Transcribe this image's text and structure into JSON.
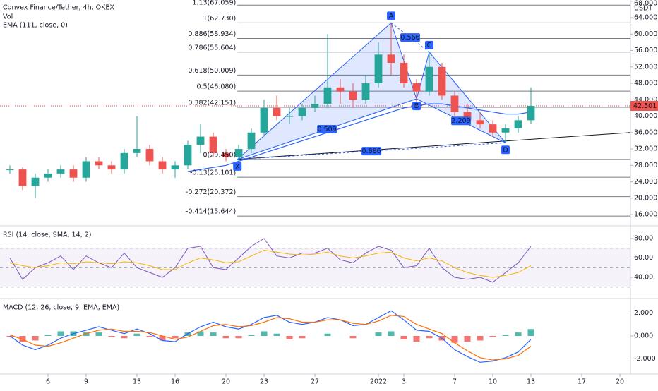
{
  "chart_data": [
    {
      "type": "candlestick",
      "title": "Convex Finance/Tether, 4h, OKEX",
      "volume_label": "Vol",
      "currency": "USDT",
      "x": [
        3,
        4,
        5,
        6,
        7,
        8,
        9,
        10,
        11,
        12,
        13,
        14,
        15,
        16,
        17,
        18,
        19,
        20,
        21,
        22,
        23,
        24,
        25,
        26,
        27,
        28,
        29,
        30,
        31,
        32,
        33,
        34,
        35,
        36,
        37,
        38,
        39,
        40,
        41,
        42,
        43,
        44
      ],
      "open": [
        27,
        27,
        23,
        25,
        26,
        27,
        25,
        29,
        28,
        27,
        31,
        32,
        29,
        27,
        28,
        33,
        35,
        31,
        30,
        32,
        36,
        42,
        40,
        40,
        42,
        43,
        47,
        46,
        44,
        48,
        55,
        53,
        48,
        46,
        52,
        45,
        41,
        39,
        38,
        36,
        37,
        39
      ],
      "high": [
        28,
        27.5,
        26,
        27,
        28,
        28,
        30,
        30,
        29,
        32,
        40,
        33,
        30,
        29,
        34,
        38,
        36,
        32,
        33,
        37,
        44,
        45,
        42,
        43,
        45,
        60,
        49,
        48,
        50,
        58,
        62.73,
        55,
        49,
        55.6,
        53,
        46,
        43,
        41,
        39,
        38,
        40,
        47
      ],
      "low": [
        26,
        22,
        20,
        24,
        25,
        24,
        24,
        27,
        26,
        26,
        30,
        28,
        26,
        25,
        27,
        31,
        30,
        29,
        29,
        31,
        35,
        39,
        38,
        39,
        41,
        42,
        43,
        42,
        43,
        47,
        50,
        47,
        43.5,
        45,
        44,
        40,
        38,
        37,
        35,
        33.5,
        36,
        38
      ],
      "close": [
        27,
        23,
        25,
        26,
        27,
        25,
        29,
        28,
        27,
        31,
        32,
        29,
        27,
        28,
        33,
        35,
        31,
        30,
        32,
        36,
        42,
        40,
        40,
        42,
        43,
        47,
        46,
        44,
        48,
        55,
        53,
        48,
        46,
        52,
        45,
        41,
        39,
        38,
        36,
        37,
        39,
        42.501
      ],
      "up_color": "#26a69a",
      "down_color": "#ef5350",
      "series": [
        {
          "name": "EMA (111, close, 0)",
          "color": "#2962ff",
          "values": [
            null,
            null,
            null,
            null,
            null,
            null,
            null,
            null,
            null,
            null,
            null,
            null,
            null,
            null,
            26.5,
            27,
            27.5,
            28,
            29,
            30,
            31,
            32,
            33,
            34,
            35,
            36,
            37,
            38,
            39,
            40,
            41,
            42,
            42.5,
            43,
            43,
            42.5,
            42,
            41.5,
            41,
            40.5,
            40.5,
            41
          ]
        }
      ],
      "fib_levels": [
        {
          "label": "1.13(67.059)",
          "value": 67.059
        },
        {
          "label": "1(62.730)",
          "value": 62.73
        },
        {
          "label": "0.886(58.934)",
          "value": 58.934
        },
        {
          "label": "0.786(55.604)",
          "value": 55.604
        },
        {
          "label": "0.618(50.009)",
          "value": 50.009
        },
        {
          "label": "0.5(46.080)",
          "value": 46.08
        },
        {
          "label": "0.382(42.151)",
          "value": 42.151
        },
        {
          "label": "0(29.450)",
          "value": 29.45
        },
        {
          "label": "-0.13(25.101)",
          "value": 25.101
        },
        {
          "label": "-0.272(20.372)",
          "value": 20.372
        },
        {
          "label": "-0.414(15.644)",
          "value": 15.644
        }
      ],
      "pattern": {
        "color": "#2962ff",
        "points": [
          {
            "name": "X",
            "x": 20.9,
            "y": 29.45
          },
          {
            "name": "A",
            "x": 33,
            "y": 62.73
          },
          {
            "name": "B",
            "x": 35,
            "y": 44.2
          },
          {
            "name": "C",
            "x": 36,
            "y": 55.6
          },
          {
            "name": "D",
            "x": 42,
            "y": 33.5
          }
        ],
        "ratios": [
          "0.509",
          "0.566",
          "2.209",
          "0.886"
        ]
      },
      "trendline": {
        "x": [
          20.9,
          51.8
        ],
        "y": [
          29.5,
          36.0
        ]
      },
      "last_price": 42.501,
      "last_color": "#ef5350",
      "xlim": [
        2.222,
        51.833
      ],
      "ylim": [
        13.6,
        68.3
      ],
      "yticks": [
        {
          "value": 16,
          "label": "16.000"
        },
        {
          "value": 20,
          "label": "20.000"
        },
        {
          "value": 24,
          "label": "24.000"
        },
        {
          "value": 28,
          "label": "28.000"
        },
        {
          "value": 32,
          "label": "32.000"
        },
        {
          "value": 36,
          "label": "36.000"
        },
        {
          "value": 40,
          "label": "40.000"
        },
        {
          "value": 44,
          "label": "44.000"
        },
        {
          "value": 48,
          "label": "48.000"
        },
        {
          "value": 52,
          "label": "52.000"
        },
        {
          "value": 56,
          "label": "56.000"
        },
        {
          "value": 60,
          "label": "60.000"
        },
        {
          "value": 64,
          "label": "64.000"
        },
        {
          "value": 68,
          "label": "68.000"
        }
      ]
    },
    {
      "type": "rsi",
      "title": "RSI (14, close, SMA, 14, 2)",
      "x": [
        3,
        4,
        5,
        6,
        7,
        8,
        9,
        10,
        11,
        12,
        13,
        14,
        15,
        16,
        17,
        18,
        19,
        20,
        21,
        22,
        23,
        24,
        25,
        26,
        27,
        28,
        29,
        30,
        31,
        32,
        33,
        34,
        35,
        36,
        37,
        38,
        39,
        40,
        41,
        42,
        43,
        44
      ],
      "series": [
        {
          "color": "#7e57c2",
          "values": [
            60,
            38,
            50,
            55,
            62,
            48,
            62,
            55,
            50,
            65,
            50,
            45,
            40,
            50,
            70,
            72,
            50,
            48,
            60,
            72,
            80,
            62,
            60,
            65,
            65,
            70,
            58,
            55,
            65,
            72,
            68,
            50,
            52,
            70,
            50,
            40,
            38,
            40,
            35,
            45,
            55,
            72
          ]
        },
        {
          "color": "#f7b500",
          "values": [
            55,
            52,
            50,
            52,
            55,
            54,
            56,
            55,
            54,
            56,
            55,
            52,
            48,
            48,
            55,
            60,
            58,
            55,
            56,
            62,
            68,
            66,
            64,
            63,
            64,
            66,
            62,
            60,
            62,
            65,
            66,
            60,
            57,
            60,
            57,
            50,
            45,
            42,
            40,
            42,
            45,
            52
          ]
        }
      ],
      "bands": [
        70,
        50,
        30
      ],
      "band_color": "#7e57c2",
      "xlim": [
        2.222,
        51.833
      ],
      "ylim": [
        20.4,
        91.6
      ],
      "yticks": [
        {
          "value": 40,
          "label": "40.00"
        },
        {
          "value": 60,
          "label": "60.00"
        },
        {
          "value": 80,
          "label": "80.00"
        }
      ]
    },
    {
      "type": "macd",
      "title": "MACD (12, 26, close, 9, EMA, EMA)",
      "x": [
        3,
        4,
        5,
        6,
        7,
        8,
        9,
        10,
        11,
        12,
        13,
        14,
        15,
        16,
        17,
        18,
        19,
        20,
        21,
        22,
        23,
        24,
        25,
        26,
        27,
        28,
        29,
        30,
        31,
        32,
        33,
        34,
        35,
        36,
        37,
        38,
        39,
        40,
        41,
        42,
        43,
        44
      ],
      "series": [
        {
          "color": "#2962ff",
          "values": [
            0,
            -0.8,
            -1.2,
            -0.8,
            -0.2,
            0.2,
            0.5,
            0.8,
            0.5,
            0.2,
            0.6,
            0.2,
            -0.4,
            -0.5,
            0.2,
            0.8,
            1.2,
            0.8,
            0.6,
            1.0,
            1.6,
            1.8,
            1.2,
            1.0,
            1.2,
            1.6,
            1.4,
            0.9,
            1.0,
            1.6,
            2.2,
            1.4,
            0.5,
            0.4,
            -0.2,
            -1.2,
            -1.8,
            -2.3,
            -2.2,
            -1.9,
            -1.4,
            -0.3
          ]
        },
        {
          "color": "#ff6d00",
          "values": [
            0.1,
            -0.3,
            -0.8,
            -0.9,
            -0.6,
            -0.2,
            0.2,
            0.5,
            0.6,
            0.4,
            0.4,
            0.3,
            0,
            -0.3,
            -0.1,
            0.4,
            0.9,
            1.0,
            0.8,
            0.9,
            1.2,
            1.6,
            1.5,
            1.2,
            1.2,
            1.4,
            1.4,
            1.1,
            1.0,
            1.3,
            1.8,
            1.7,
            1.0,
            0.6,
            0.2,
            -0.6,
            -1.3,
            -1.9,
            -2.1,
            -2.0,
            -1.7,
            -0.9
          ]
        }
      ],
      "histogram": [
        -0.1,
        -0.5,
        -0.4,
        0.1,
        0.4,
        0.4,
        0.3,
        0.3,
        -0.1,
        -0.2,
        0.2,
        -0.1,
        -0.4,
        -0.2,
        0.3,
        0.4,
        0.3,
        -0.2,
        -0.2,
        0.1,
        0.4,
        0.2,
        -0.3,
        -0.2,
        0,
        0.2,
        0,
        -0.2,
        0,
        0.3,
        0.4,
        -0.3,
        -0.5,
        -0.2,
        -0.4,
        -0.6,
        -0.5,
        -0.4,
        -0.1,
        0.1,
        0.3,
        0.6
      ],
      "up_color": "#26a69a",
      "down_color": "#ef5350",
      "xlim": [
        2.222,
        51.833
      ],
      "ylim": [
        -3.02,
        3.14
      ],
      "yticks": [
        {
          "value": -2,
          "label": "-2.000"
        },
        {
          "value": 0,
          "label": "0.000"
        },
        {
          "value": 2,
          "label": "2.000"
        }
      ],
      "xticks": [
        6,
        9,
        13,
        16,
        20,
        23,
        27,
        {
          "value": 32,
          "label": "2022"
        },
        {
          "value": 34,
          "label": "3"
        },
        {
          "value": 38,
          "label": "7"
        },
        {
          "value": 41,
          "label": "10"
        },
        {
          "value": 44,
          "label": "13"
        },
        {
          "value": 48,
          "label": "17"
        },
        {
          "value": 51,
          "label": "20"
        }
      ]
    }
  ]
}
